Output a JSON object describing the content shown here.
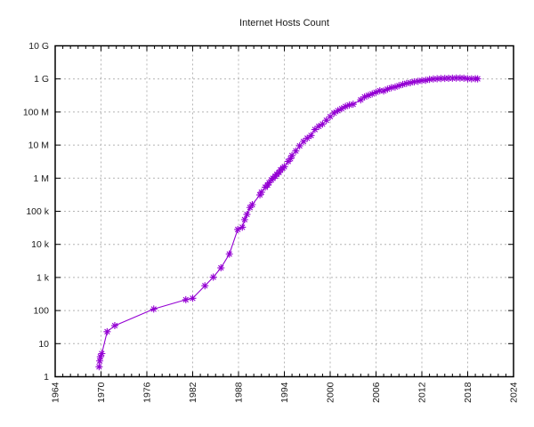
{
  "page": {
    "background": "#ffffff"
  },
  "chart_data": {
    "type": "line",
    "title": "Internet Hosts Count",
    "xlabel": "",
    "ylabel": "",
    "x_axis": {
      "min": 1964,
      "max": 2024,
      "major_step": 6,
      "minor_step": 1,
      "tick_labels": [
        "1964",
        "1970",
        "1976",
        "1982",
        "1988",
        "1994",
        "2000",
        "2006",
        "2012",
        "2018",
        "2024"
      ]
    },
    "y_axis": {
      "scale": "log10",
      "min": 1,
      "max": 10000000000,
      "tick_labels": [
        "1",
        "10",
        "100",
        "1 k",
        "10 k",
        "100 k",
        "1 M",
        "10 M",
        "100 M",
        "1 G",
        "10 G"
      ]
    },
    "grid": {
      "show": true,
      "style": "dashed",
      "color": "#b4b4b4"
    },
    "legend": "none",
    "frame_color": "#000000",
    "series": [
      {
        "name": "Internet hosts",
        "color": "#9400d3",
        "marker": "asterisk",
        "points": [
          [
            1969.75,
            2
          ],
          [
            1969.83,
            3
          ],
          [
            1969.92,
            4
          ],
          [
            1970.1,
            5
          ],
          [
            1970.8,
            23
          ],
          [
            1971.8,
            35
          ],
          [
            1976.9,
            111
          ],
          [
            1981.1,
            213
          ],
          [
            1982.0,
            235
          ],
          [
            1983.6,
            562
          ],
          [
            1984.7,
            1024
          ],
          [
            1985.7,
            1961
          ],
          [
            1986.8,
            5089
          ],
          [
            1987.9,
            28174
          ],
          [
            1988.5,
            33000
          ],
          [
            1988.8,
            56000
          ],
          [
            1989.1,
            80000
          ],
          [
            1989.5,
            130000
          ],
          [
            1989.8,
            159000
          ],
          [
            1990.8,
            313000
          ],
          [
            1991.0,
            376000
          ],
          [
            1991.5,
            535000
          ],
          [
            1991.8,
            617000
          ],
          [
            1992.0,
            727000
          ],
          [
            1992.3,
            890000
          ],
          [
            1992.5,
            992000
          ],
          [
            1992.8,
            1136000
          ],
          [
            1993.0,
            1313000
          ],
          [
            1993.3,
            1486000
          ],
          [
            1993.5,
            1776000
          ],
          [
            1993.8,
            2056000
          ],
          [
            1994.0,
            2217000
          ],
          [
            1994.5,
            3212000
          ],
          [
            1994.8,
            3864000
          ],
          [
            1995.0,
            4852000
          ],
          [
            1995.5,
            6642000
          ],
          [
            1996.0,
            9472000
          ],
          [
            1996.5,
            12881000
          ],
          [
            1997.0,
            16146000
          ],
          [
            1997.5,
            19540000
          ],
          [
            1998.0,
            29670000
          ],
          [
            1998.5,
            36739000
          ],
          [
            1999.0,
            43230000
          ],
          [
            1999.5,
            56218000
          ],
          [
            2000.0,
            72398092
          ],
          [
            2000.5,
            93047785
          ],
          [
            2001.0,
            109574429
          ],
          [
            2001.5,
            125888197
          ],
          [
            2002.0,
            147344723
          ],
          [
            2002.5,
            162128493
          ],
          [
            2003.0,
            171638297
          ],
          [
            2004.0,
            233101481
          ],
          [
            2004.5,
            285139107
          ],
          [
            2005.0,
            317646084
          ],
          [
            2005.5,
            353284187
          ],
          [
            2006.0,
            394991609
          ],
          [
            2006.5,
            439286364
          ],
          [
            2007.0,
            433193199
          ],
          [
            2007.5,
            489774269
          ],
          [
            2008.0,
            541677360
          ],
          [
            2008.5,
            570937778
          ],
          [
            2009.0,
            625226456
          ],
          [
            2009.5,
            681064561
          ],
          [
            2010.0,
            732740444
          ],
          [
            2010.5,
            768913036
          ],
          [
            2011.0,
            818374269
          ],
          [
            2011.5,
            849869781
          ],
          [
            2012.0,
            888239420
          ],
          [
            2012.5,
            908585739
          ],
          [
            2013.0,
            963518598
          ],
          [
            2013.5,
            996230757
          ],
          [
            2014.0,
            1010251829
          ],
          [
            2014.5,
            1028544414
          ],
          [
            2015.0,
            1033836029
          ],
          [
            2015.5,
            1045534808
          ],
          [
            2016.0,
            1048766623
          ],
          [
            2016.5,
            1062660523
          ],
          [
            2017.0,
            1062660523
          ],
          [
            2017.5,
            1055559072
          ],
          [
            2018.0,
            1014763250
          ],
          [
            2018.5,
            1007411660
          ],
          [
            2019.0,
            1012695272
          ],
          [
            2019.3,
            1005000000
          ]
        ]
      }
    ]
  }
}
